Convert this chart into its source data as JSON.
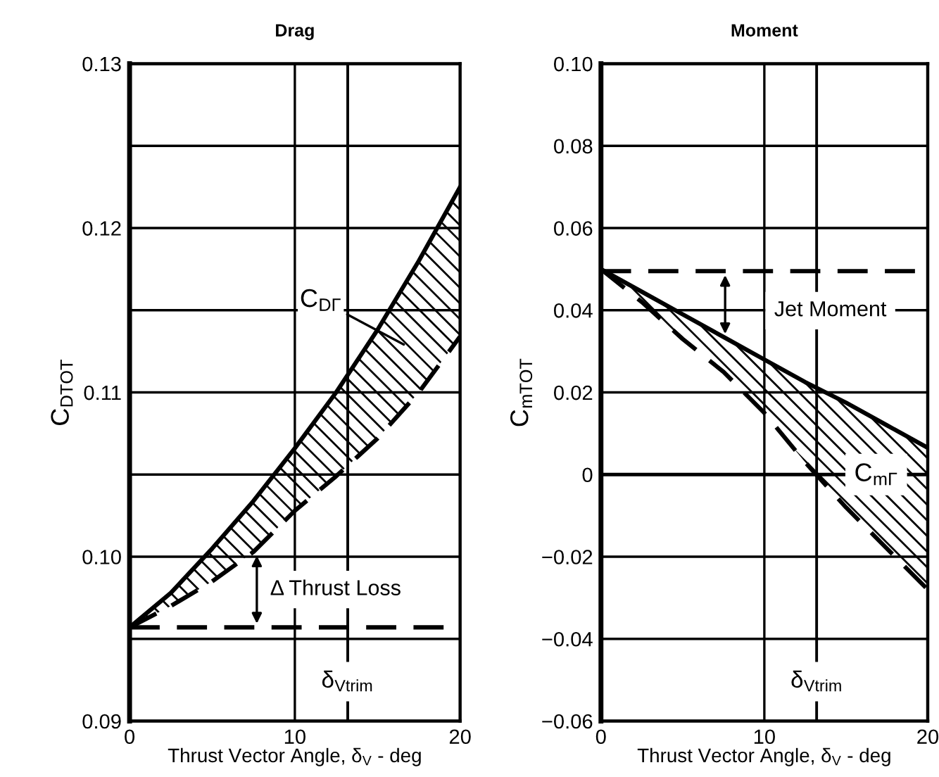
{
  "chart_data": [
    {
      "type": "line",
      "title": "Drag",
      "xlabel": "Thrust Vector Angle, δ$_{V}$ - deg",
      "ylabel": "C$_{DTOT}$",
      "x": [
        0,
        2.5,
        5,
        7.5,
        10,
        12.5,
        15,
        17.5,
        20
      ],
      "series": [
        {
          "color": "#000000",
          "line_style": "solid",
          "values": [
            0.0957,
            0.0978,
            0.1005,
            0.1034,
            0.1066,
            0.11,
            0.1138,
            0.118,
            0.1225
          ],
          "lower": [
            0.0957,
            0.097,
            0.0985,
            0.1003,
            0.1028,
            0.1049,
            0.1072,
            0.11,
            0.1134
          ],
          "upper": [
            0.0957,
            0.0978,
            0.1005,
            0.1034,
            0.1066,
            0.11,
            0.1138,
            0.118,
            0.1225
          ]
        },
        {
          "color": "#000000",
          "line_style": "dashed",
          "values": [
            0.0957,
            0.097,
            0.0985,
            0.1003,
            0.1028,
            0.1049,
            0.1072,
            0.11,
            0.1134
          ]
        }
      ],
      "xlim": [
        0,
        20
      ],
      "xticks": [
        0,
        10,
        20
      ],
      "ylim": [
        0.09,
        0.13
      ],
      "yticks": [
        0.09,
        {
          "value": 0.095,
          "label": null
        },
        {
          "value": 0.1,
          "label": "0.10"
        },
        {
          "value": 0.105,
          "label": null
        },
        0.11,
        {
          "value": 0.115,
          "label": null
        },
        0.12,
        {
          "value": 0.125,
          "label": null
        },
        0.13
      ],
      "grid": true,
      "legend": false,
      "marker": "none",
      "ref_lines": [
        {
          "axis": "y",
          "value": 0.0957,
          "line_style": "dashed",
          "color": "#000000"
        },
        {
          "axis": "x",
          "value": 13.2,
          "label": "δ$_{Vtrim}$",
          "color": "#000000"
        }
      ],
      "annotations": [
        {
          "text": "C$_{DΓ}$",
          "x": 16.8,
          "y": 0.1128
        },
        {
          "text": "Δ Thrust Loss",
          "x": 7.7,
          "y": 0.1003
        }
      ]
    },
    {
      "type": "line",
      "title": "Moment",
      "xlabel": "Thrust Vector Angle, δ$_{V}$ - deg",
      "ylabel": "C$_{mTOT}$",
      "x": [
        0,
        2.5,
        5,
        7.5,
        10,
        12.5,
        15,
        17.5,
        20
      ],
      "series": [
        {
          "color": "#000000",
          "line_style": "solid",
          "values": [
            0.05,
            0.0445,
            0.039,
            0.0335,
            0.028,
            0.0225,
            0.0175,
            0.012,
            0.0065
          ],
          "lower": [
            0.05,
            0.042,
            0.033,
            0.025,
            0.015,
            0.003,
            -0.008,
            -0.018,
            -0.028
          ],
          "upper": [
            0.05,
            0.0445,
            0.039,
            0.0335,
            0.028,
            0.0225,
            0.0175,
            0.012,
            0.0065
          ]
        },
        {
          "color": "#000000",
          "line_style": "dashed",
          "values": [
            0.05,
            0.042,
            0.033,
            0.025,
            0.015,
            0.003,
            -0.008,
            -0.018,
            -0.028
          ]
        }
      ],
      "xlim": [
        0,
        20
      ],
      "xticks": [
        0,
        10,
        20
      ],
      "ylim": [
        -0.06,
        0.1
      ],
      "yticks": [
        {
          "value": -0.06,
          "label": "−0.06"
        },
        {
          "value": -0.04,
          "label": "−0.04"
        },
        {
          "value": -0.02,
          "label": "−0.02"
        },
        {
          "value": 0,
          "label": "0"
        },
        {
          "value": 0.02,
          "label": "0.02"
        },
        {
          "value": 0.04,
          "label": "0.04"
        },
        {
          "value": 0.06,
          "label": "0.06"
        },
        {
          "value": 0.08,
          "label": "0.08"
        },
        {
          "value": 0.1,
          "label": "0.10"
        }
      ],
      "grid": true,
      "legend": false,
      "marker": "none",
      "ref_lines": [
        {
          "axis": "y",
          "value": 0.0495,
          "line_style": "dashed",
          "color": "#000000"
        },
        {
          "axis": "y",
          "value": 0,
          "color": "#000000"
        },
        {
          "axis": "x",
          "value": 13.2,
          "label": "δ$_{Vtrim}$",
          "color": "#000000"
        }
      ],
      "annotations": [
        {
          "text": "Jet Moment",
          "x": 7.6,
          "y": 0.0495
        },
        {
          "text": "C$_{mΓ}$",
          "x": 15.5,
          "y": 0.0
        }
      ]
    }
  ]
}
